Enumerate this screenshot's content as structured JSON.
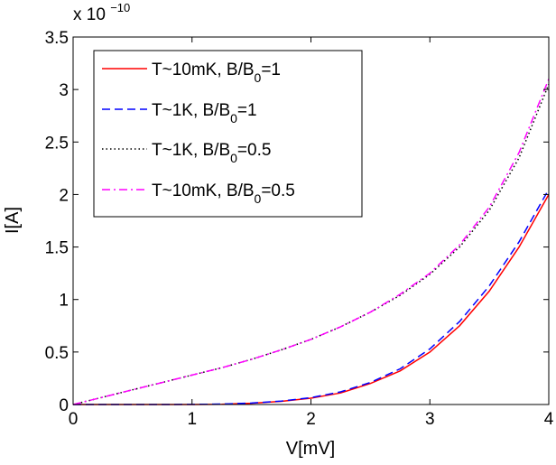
{
  "chart_data": {
    "type": "line",
    "title": "",
    "xlabel": "V[mV]",
    "ylabel": "I[A]",
    "xlim": [
      0,
      4
    ],
    "ylim": [
      0,
      3.5
    ],
    "y_multiplier": {
      "base": "x 10",
      "exponent": "−10"
    },
    "grid": false,
    "box": true,
    "legend_position": "top-left",
    "x_ticks": [
      0,
      1,
      2,
      3,
      4
    ],
    "x_tick_labels": [
      "0",
      "1",
      "2",
      "3",
      "4"
    ],
    "y_ticks": [
      0,
      0.5,
      1,
      1.5,
      2,
      2.5,
      3,
      3.5
    ],
    "y_tick_labels": [
      "0",
      "0.5",
      "1",
      "1.5",
      "2",
      "2.5",
      "3",
      "3.5"
    ],
    "x": [
      0,
      0.25,
      0.5,
      0.75,
      1.0,
      1.25,
      1.5,
      1.75,
      2.0,
      2.25,
      2.5,
      2.75,
      3.0,
      3.25,
      3.5,
      3.75,
      4.0
    ],
    "series": [
      {
        "name": "T~10mK, B/B0=1",
        "legend_main": "T~10mK, B/B",
        "legend_sub": "0",
        "legend_tail": "=1",
        "color": "#ff0000",
        "dash": "solid",
        "values": [
          0,
          0,
          0,
          0,
          0,
          0.003,
          0.012,
          0.03,
          0.06,
          0.11,
          0.2,
          0.32,
          0.5,
          0.75,
          1.08,
          1.5,
          2.0
        ]
      },
      {
        "name": "T~1K, B/B0=1",
        "legend_main": "T~1K, B/B",
        "legend_sub": "0",
        "legend_tail": "=1",
        "color": "#0000ff",
        "dash": "dashed",
        "values": [
          0,
          0,
          0,
          0,
          0.001,
          0.004,
          0.014,
          0.033,
          0.065,
          0.12,
          0.21,
          0.34,
          0.53,
          0.79,
          1.13,
          1.55,
          2.05
        ]
      },
      {
        "name": "T~1K, B/B0=0.5",
        "legend_main": "T~1K, B/B",
        "legend_sub": "0",
        "legend_tail": "=0.5",
        "color": "#000000",
        "dash": "dotted",
        "values": [
          0,
          0.07,
          0.14,
          0.21,
          0.28,
          0.35,
          0.43,
          0.52,
          0.62,
          0.74,
          0.88,
          1.04,
          1.24,
          1.5,
          1.85,
          2.35,
          3.05
        ]
      },
      {
        "name": "T~10mK, B/B0=0.5",
        "legend_main": "T~10mK, B/B",
        "legend_sub": "0",
        "legend_tail": "=0.5",
        "color": "#ff00ff",
        "dash": "dashdot",
        "values": [
          0,
          0.07,
          0.14,
          0.21,
          0.28,
          0.35,
          0.43,
          0.52,
          0.62,
          0.74,
          0.88,
          1.05,
          1.25,
          1.52,
          1.88,
          2.4,
          3.1
        ]
      }
    ]
  }
}
